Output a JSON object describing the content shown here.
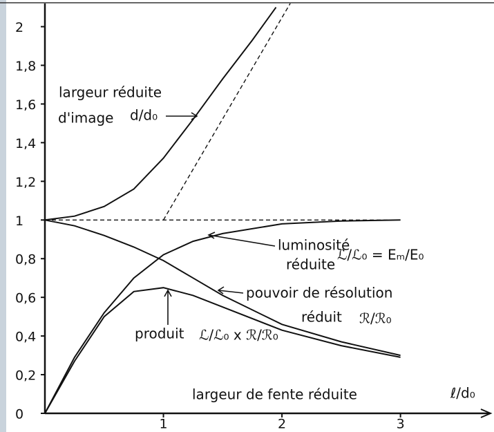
{
  "chart_data": {
    "type": "line",
    "xlim": [
      0,
      3.76
    ],
    "ylim": [
      0,
      2.12
    ],
    "xticks": [
      1,
      2,
      3
    ],
    "yticks": [
      0,
      {
        "value": 0.2,
        "label": "0,2"
      },
      {
        "value": 0.4,
        "label": "0,4"
      },
      {
        "value": 0.6,
        "label": "0,6"
      },
      {
        "value": 0.8,
        "label": "0,8"
      },
      1,
      {
        "value": 1.2,
        "label": "1,2"
      },
      {
        "value": 1.4,
        "label": "1,4"
      },
      {
        "value": 1.6,
        "label": "1,6"
      },
      {
        "value": 1.8,
        "label": "1,8"
      },
      2
    ],
    "grid": false,
    "series": [
      {
        "color": "#111111",
        "dash": false,
        "x": [
          0,
          0.25,
          0.5,
          0.75,
          1,
          1.25,
          1.5,
          1.75,
          1.95
        ],
        "values": [
          1,
          1.02,
          1.07,
          1.16,
          1.32,
          1.52,
          1.73,
          1.93,
          2.1
        ]
      },
      {
        "color": "#111111",
        "dash": true,
        "x": [
          1,
          2.07
        ],
        "values": [
          1,
          2.12
        ]
      },
      {
        "color": "#111111",
        "dash": true,
        "x": [
          0,
          3
        ],
        "values": [
          1,
          1
        ]
      },
      {
        "color": "#111111",
        "dash": false,
        "x": [
          0,
          0.25,
          0.5,
          0.75,
          1,
          1.25,
          1.5,
          2,
          2.5,
          3
        ],
        "values": [
          0,
          0.29,
          0.52,
          0.7,
          0.82,
          0.89,
          0.93,
          0.98,
          0.995,
          1
        ]
      },
      {
        "color": "#111111",
        "dash": false,
        "x": [
          0,
          0.25,
          0.5,
          0.75,
          1,
          1.25,
          1.5,
          2,
          2.5,
          3
        ],
        "values": [
          1,
          0.97,
          0.92,
          0.86,
          0.79,
          0.7,
          0.61,
          0.46,
          0.37,
          0.3
        ]
      },
      {
        "color": "#111111",
        "dash": false,
        "x": [
          0,
          0.25,
          0.5,
          0.75,
          1,
          1.25,
          1.5,
          2,
          2.5,
          3
        ],
        "values": [
          0,
          0.27,
          0.5,
          0.63,
          0.65,
          0.61,
          0.55,
          0.43,
          0.35,
          0.29
        ]
      }
    ],
    "annotations": [
      "largeur réduite",
      "d'image",
      "d/d₀",
      "luminosité",
      "réduite",
      "ℒ/ℒ₀ = Eₘ/E₀",
      "pouvoir de résolution",
      "réduit",
      "ℛ/ℛ₀",
      "produit",
      "ℒ/ℒ₀ x ℛ/ℛ₀",
      "largeur de fente réduite",
      "ℓ/d₀"
    ]
  }
}
